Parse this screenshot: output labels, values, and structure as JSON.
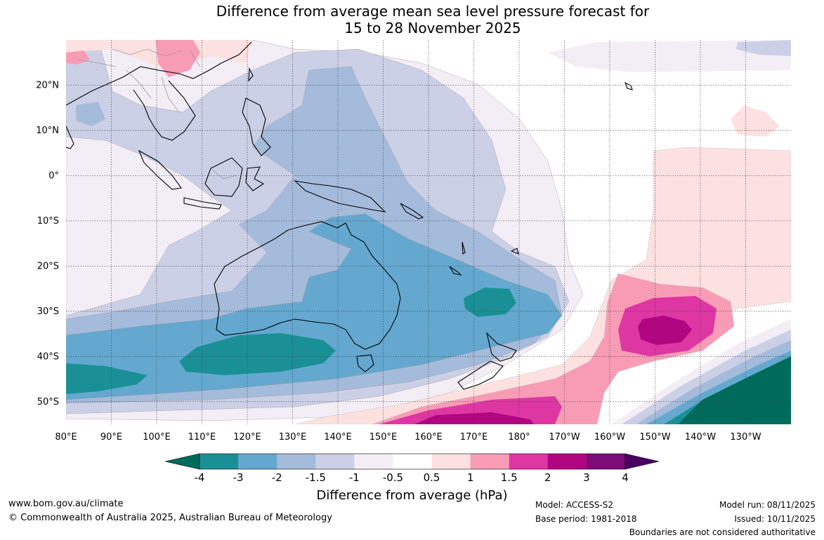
{
  "title": {
    "line1": "Difference from average mean sea level pressure forecast for",
    "line2": "15 to 28 November 2025"
  },
  "map": {
    "lat_labels": [
      "20°N",
      "10°N",
      "0°",
      "10°S",
      "20°S",
      "30°S",
      "40°S",
      "50°S"
    ],
    "lon_labels": [
      "80°E",
      "90°E",
      "100°E",
      "110°E",
      "120°E",
      "130°E",
      "140°E",
      "150°E",
      "160°E",
      "170°E",
      "180°",
      "170°W",
      "160°W",
      "150°W",
      "140°W",
      "130°W"
    ],
    "extent": {
      "lon_min_east": 80,
      "lon_max_east": 240,
      "lat_min": -55,
      "lat_max": 30
    }
  },
  "colorbar": {
    "labels": [
      "-4",
      "-3",
      "-2",
      "-1.5",
      "-1",
      "-0.5",
      "0.5",
      "1",
      "1.5",
      "2",
      "3",
      "4"
    ],
    "low_extend_color": "#016b5b",
    "colors": [
      "#1a9096",
      "#64a8cf",
      "#a5bbdb",
      "#ccd0e7",
      "#f3edf6",
      "#ffffff",
      "#fde1e1",
      "#f89cb6",
      "#de36a3",
      "#b0067f",
      "#7e0d79"
    ],
    "high_extend_color": "#4a0060",
    "title": "Difference from average (hPa)"
  },
  "footer": {
    "website": "www.bom.gov.au/climate",
    "copyright": "© Commonwealth of Australia 2025, Australian Bureau of Meteorology",
    "model": "Model: ACCESS-S2",
    "base_period": "Base period: 1981-2018",
    "model_run": "Model run: 08/11/2025",
    "issued": "Issued: 10/11/2025",
    "disclaimer": "Boundaries are not considered authoritative"
  }
}
